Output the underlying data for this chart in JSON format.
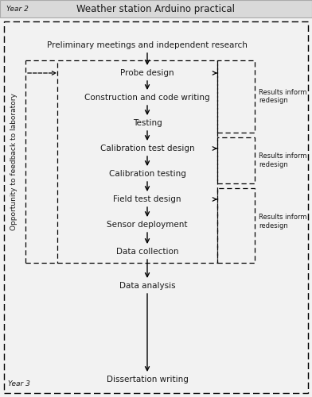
{
  "title": "Weather station Arduino practical",
  "year2_label": "Year 2",
  "year3_label": "Year 3",
  "left_label": "Opportunity to feedback to laboratory",
  "steps": [
    "Preliminary meetings and independent research",
    "Probe design",
    "Construction and code writing",
    "Testing",
    "Calibration test design",
    "Calibration testing",
    "Field test design",
    "Sensor deployment",
    "Data collection",
    "Data analysis",
    "Dissertation writing"
  ],
  "redesign_labels": [
    "Results inform\nredesign",
    "Results inform\nredesign",
    "Results inform\nredesign"
  ],
  "bg_color": "#f2f2f2",
  "title_bar_color": "#d9d9d9",
  "text_color": "#1a1a1a",
  "fontsize": 7.5,
  "title_fontsize": 8.5,
  "small_fontsize": 6.0,
  "label_fontsize": 6.5
}
